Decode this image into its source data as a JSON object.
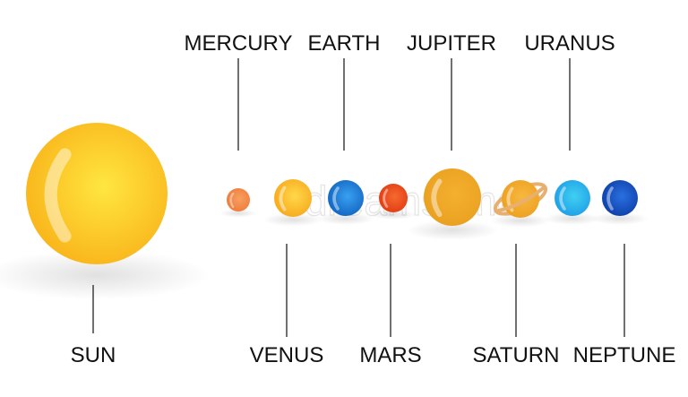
{
  "planets": [
    {
      "key": "sun",
      "label": "SUN",
      "label_side": "bottom",
      "color": "#f9b41a",
      "light": "#ffe640"
    },
    {
      "key": "mercury",
      "label": "MERCURY",
      "label_side": "top",
      "color": "#ef7a3a",
      "light": "#f7a060"
    },
    {
      "key": "venus",
      "label": "VENUS",
      "label_side": "bottom",
      "color": "#f7a81c",
      "light": "#ffd84a"
    },
    {
      "key": "earth",
      "label": "EARTH",
      "label_side": "top",
      "color": "#1064c0",
      "light": "#3aa0f0"
    },
    {
      "key": "mars",
      "label": "MARS",
      "label_side": "bottom",
      "color": "#e23a10",
      "light": "#f56a30"
    },
    {
      "key": "jupiter",
      "label": "JUPITER",
      "label_side": "top",
      "color": "#e9a020",
      "light": "#f5b030"
    },
    {
      "key": "saturn",
      "label": "SATURN",
      "label_side": "bottom",
      "color": "#eda020",
      "light": "#f7b840",
      "ring": "#e8b070"
    },
    {
      "key": "uranus",
      "label": "URANUS",
      "label_side": "top",
      "color": "#1e9ee8",
      "light": "#40d0f0"
    },
    {
      "key": "neptune",
      "label": "NEPTUNE",
      "label_side": "bottom",
      "color": "#0e3ea8",
      "light": "#2a70e0"
    }
  ],
  "watermark": "dreamstime"
}
